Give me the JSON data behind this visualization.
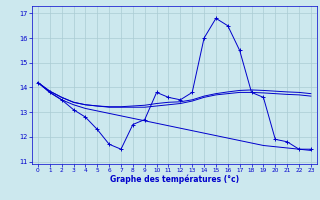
{
  "title": "Graphe des températures (°c)",
  "background_color": "#cce8ee",
  "grid_color": "#aaccd4",
  "line_color": "#0000cc",
  "xlim": [
    -0.5,
    23.5
  ],
  "ylim": [
    10.9,
    17.3
  ],
  "yticks": [
    11,
    12,
    13,
    14,
    15,
    16,
    17
  ],
  "xticks": [
    0,
    1,
    2,
    3,
    4,
    5,
    6,
    7,
    8,
    9,
    10,
    11,
    12,
    13,
    14,
    15,
    16,
    17,
    18,
    19,
    20,
    21,
    22,
    23
  ],
  "curve1_x": [
    0,
    1,
    2,
    3,
    4,
    5,
    6,
    7,
    8,
    9,
    10,
    11,
    12,
    13,
    14,
    15,
    16,
    17,
    18,
    19,
    20,
    21,
    22,
    23
  ],
  "curve1_y": [
    14.2,
    13.8,
    13.5,
    13.1,
    12.8,
    12.3,
    11.7,
    11.5,
    12.5,
    12.7,
    13.8,
    13.6,
    13.5,
    13.8,
    16.0,
    16.8,
    16.5,
    15.5,
    13.8,
    13.6,
    11.9,
    11.8,
    11.5,
    11.5
  ],
  "curve2_x": [
    0,
    1,
    2,
    3,
    4,
    5,
    6,
    7,
    8,
    9,
    10,
    11,
    12,
    13,
    14,
    15,
    16,
    17,
    18,
    19,
    20,
    21,
    22,
    23
  ],
  "curve2_y": [
    14.2,
    13.8,
    13.5,
    13.3,
    13.15,
    13.05,
    12.95,
    12.85,
    12.75,
    12.65,
    12.55,
    12.45,
    12.35,
    12.25,
    12.15,
    12.05,
    11.95,
    11.85,
    11.75,
    11.65,
    11.6,
    11.55,
    11.5,
    11.45
  ],
  "curve3_x": [
    0,
    1,
    2,
    3,
    4,
    5,
    6,
    7,
    8,
    9,
    10,
    11,
    12,
    13,
    14,
    15,
    16,
    17,
    18,
    19,
    20,
    21,
    22,
    23
  ],
  "curve3_y": [
    14.2,
    13.85,
    13.6,
    13.4,
    13.3,
    13.25,
    13.2,
    13.2,
    13.2,
    13.2,
    13.25,
    13.3,
    13.35,
    13.45,
    13.6,
    13.7,
    13.75,
    13.8,
    13.8,
    13.78,
    13.75,
    13.72,
    13.7,
    13.65
  ],
  "curve4_x": [
    0,
    1,
    2,
    3,
    4,
    5,
    6,
    7,
    8,
    9,
    10,
    11,
    12,
    13,
    14,
    15,
    16,
    17,
    18,
    19,
    20,
    21,
    22,
    23
  ],
  "curve4_y": [
    14.2,
    13.85,
    13.6,
    13.4,
    13.3,
    13.25,
    13.22,
    13.22,
    13.25,
    13.28,
    13.35,
    13.4,
    13.42,
    13.5,
    13.65,
    13.75,
    13.82,
    13.88,
    13.9,
    13.88,
    13.85,
    13.82,
    13.8,
    13.75
  ]
}
